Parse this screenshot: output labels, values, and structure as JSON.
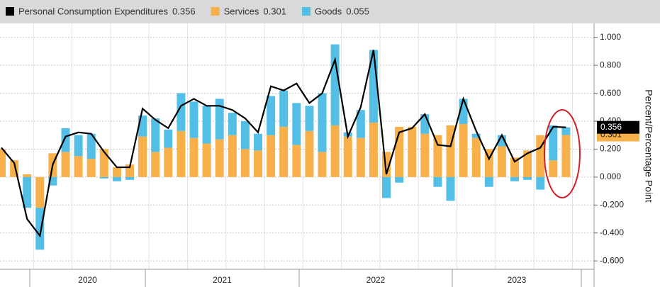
{
  "chart_data": {
    "type": "bar",
    "stacked": true,
    "y_axis_label": "Percent/Percentage Point",
    "categories": [
      null,
      null,
      null,
      null,
      null,
      null,
      null,
      null,
      null,
      null,
      null,
      null,
      null,
      null,
      null,
      null,
      null,
      null,
      null,
      null,
      null,
      null,
      null,
      null,
      null,
      null,
      null,
      null,
      null,
      null,
      null,
      null,
      null,
      null,
      null,
      null,
      null,
      null,
      null,
      null,
      null,
      null,
      null,
      null,
      null
    ],
    "year_labels": [
      "2020",
      "2021",
      "2022",
      "2023"
    ],
    "series": [
      {
        "name": "Personal Consumption Expenditures",
        "type": "line",
        "color": "#000000",
        "values": [
          0.21,
          0.1,
          -0.3,
          -0.42,
          0.09,
          0.29,
          0.32,
          0.31,
          0.18,
          0.07,
          0.07,
          0.49,
          0.41,
          0.35,
          0.51,
          0.56,
          0.51,
          0.51,
          0.48,
          0.42,
          0.32,
          0.65,
          0.62,
          0.67,
          0.53,
          0.6,
          0.84,
          0.29,
          0.5,
          0.91,
          0.02,
          0.32,
          0.35,
          0.45,
          0.23,
          0.22,
          0.56,
          0.33,
          0.13,
          0.3,
          0.11,
          0.17,
          0.21,
          0.36,
          0.356
        ]
      },
      {
        "name": "Services",
        "type": "bar",
        "color": "#f7b04a",
        "values": [
          0.2,
          0.12,
          0.02,
          -0.22,
          0.17,
          0.18,
          0.15,
          0.13,
          0.2,
          0.07,
          0.09,
          0.29,
          0.18,
          0.21,
          0.33,
          0.28,
          0.24,
          0.27,
          0.3,
          0.2,
          0.19,
          0.3,
          0.36,
          0.23,
          0.33,
          0.18,
          0.37,
          0.29,
          0.28,
          0.39,
          0.18,
          0.36,
          0.36,
          0.31,
          0.3,
          0.37,
          0.38,
          0.28,
          0.2,
          0.22,
          0.14,
          0.19,
          0.3,
          0.12,
          0.301
        ]
      },
      {
        "name": "Goods",
        "type": "bar",
        "color": "#53bfe6",
        "values": [
          0,
          0,
          -0.22,
          -0.3,
          -0.06,
          0.17,
          0.15,
          0.18,
          -0.01,
          -0.03,
          -0.02,
          0.15,
          0.24,
          0.13,
          0.27,
          0.26,
          0.27,
          0.29,
          0.16,
          0.2,
          0.12,
          0.28,
          0.26,
          0.3,
          0.18,
          0.42,
          0.58,
          0.03,
          0.2,
          0.52,
          -0.15,
          -0.04,
          0,
          0.14,
          -0.07,
          -0.17,
          0.18,
          0.03,
          -0.07,
          0.08,
          -0.03,
          -0.02,
          -0.09,
          0.25,
          0.055
        ]
      }
    ],
    "ylim": [
      -0.66,
      1.1
    ],
    "yticks": [
      {
        "value": -0.6,
        "label": "-0.600"
      },
      {
        "value": -0.4,
        "label": "-0.400"
      },
      {
        "value": -0.2,
        "label": "-0.200"
      },
      {
        "value": 0,
        "label": "0.000"
      },
      {
        "value": 0.2,
        "label": "0.200"
      },
      {
        "value": 0.4,
        "label": "0.400"
      },
      {
        "value": 0.6,
        "label": "0.600"
      },
      {
        "value": 0.8,
        "label": "0.800"
      },
      {
        "value": 1.0,
        "label": "1.000"
      }
    ],
    "grid": true
  }
}
